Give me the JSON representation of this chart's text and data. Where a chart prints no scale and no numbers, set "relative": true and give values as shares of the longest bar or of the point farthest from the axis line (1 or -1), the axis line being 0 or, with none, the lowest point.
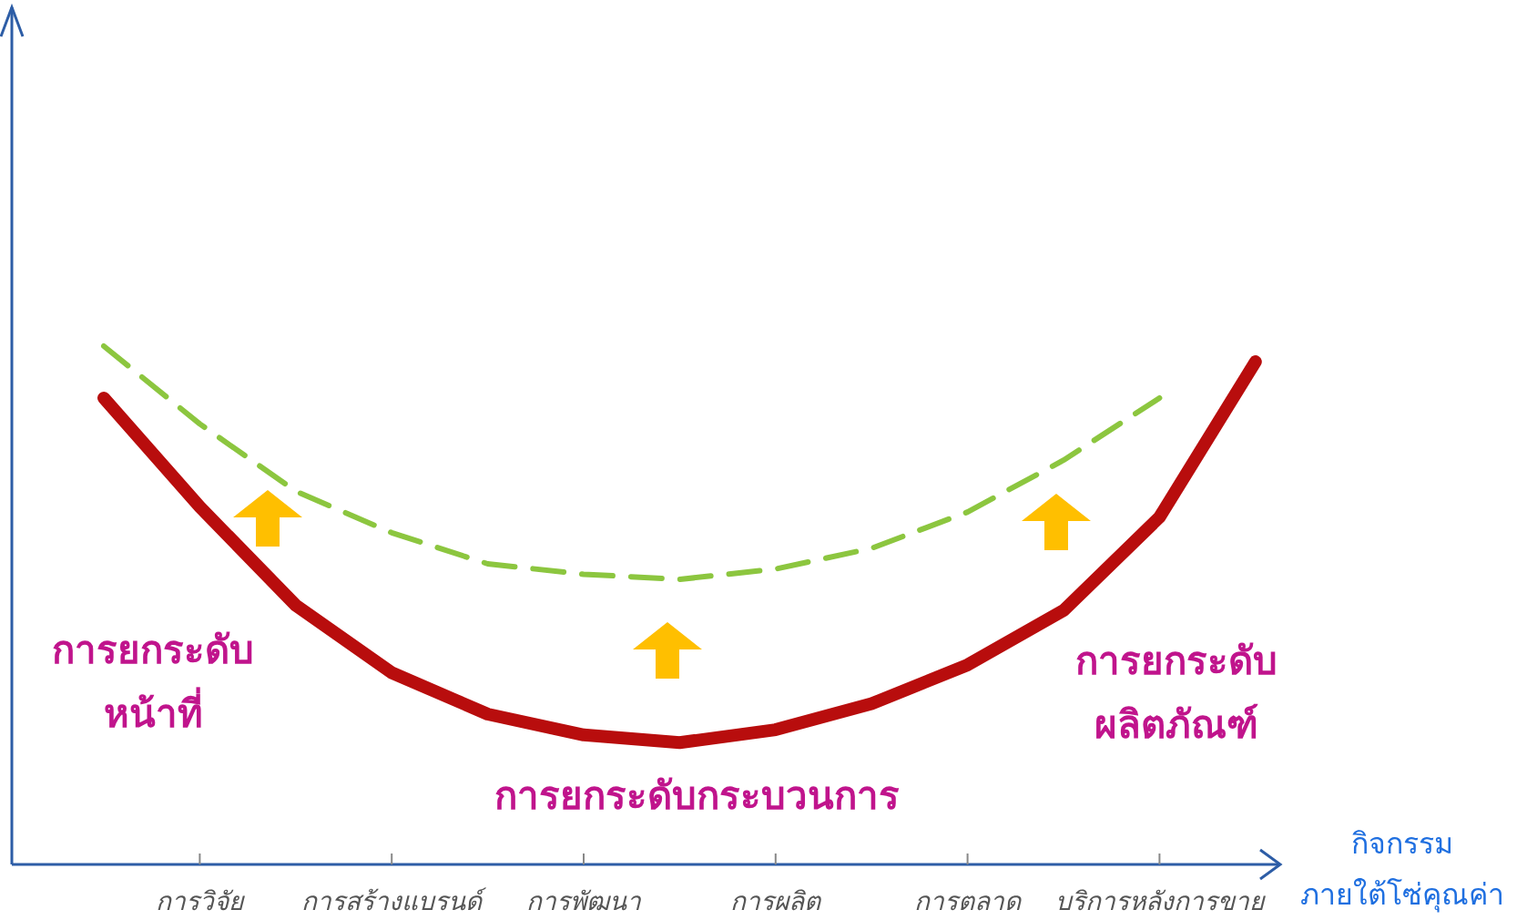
{
  "chart_data": {
    "type": "line",
    "relative": true,
    "xlabel": "กิจกรรม ภายใต้โซ่คุณค่า",
    "categories": [
      null,
      "การวิจัย",
      null,
      "การสร้างแบรนด์",
      null,
      "การพัฒนา",
      null,
      "การผลิต",
      null,
      "การตลาด",
      null,
      "บริการหลังการขาย",
      null
    ],
    "series": [
      {
        "color": "#b80d0d",
        "line_style": "solid",
        "values": [
          0.9,
          0.69,
          0.5,
          0.37,
          0.29,
          0.25,
          0.235,
          0.26,
          0.31,
          0.385,
          0.49,
          0.67,
          0.97
        ]
      },
      {
        "color": "#8cc63f",
        "line_style": "dashed",
        "values": [
          1.0,
          0.85,
          0.72,
          0.64,
          0.58,
          0.56,
          0.55,
          0.57,
          0.61,
          0.68,
          0.78,
          0.9,
          null
        ]
      }
    ],
    "annotations": [
      "การยกระดับ หน้าที่",
      "การยกระดับกระบวนการ",
      "การยกระดับ ผลิตภัณฑ์"
    ]
  }
}
